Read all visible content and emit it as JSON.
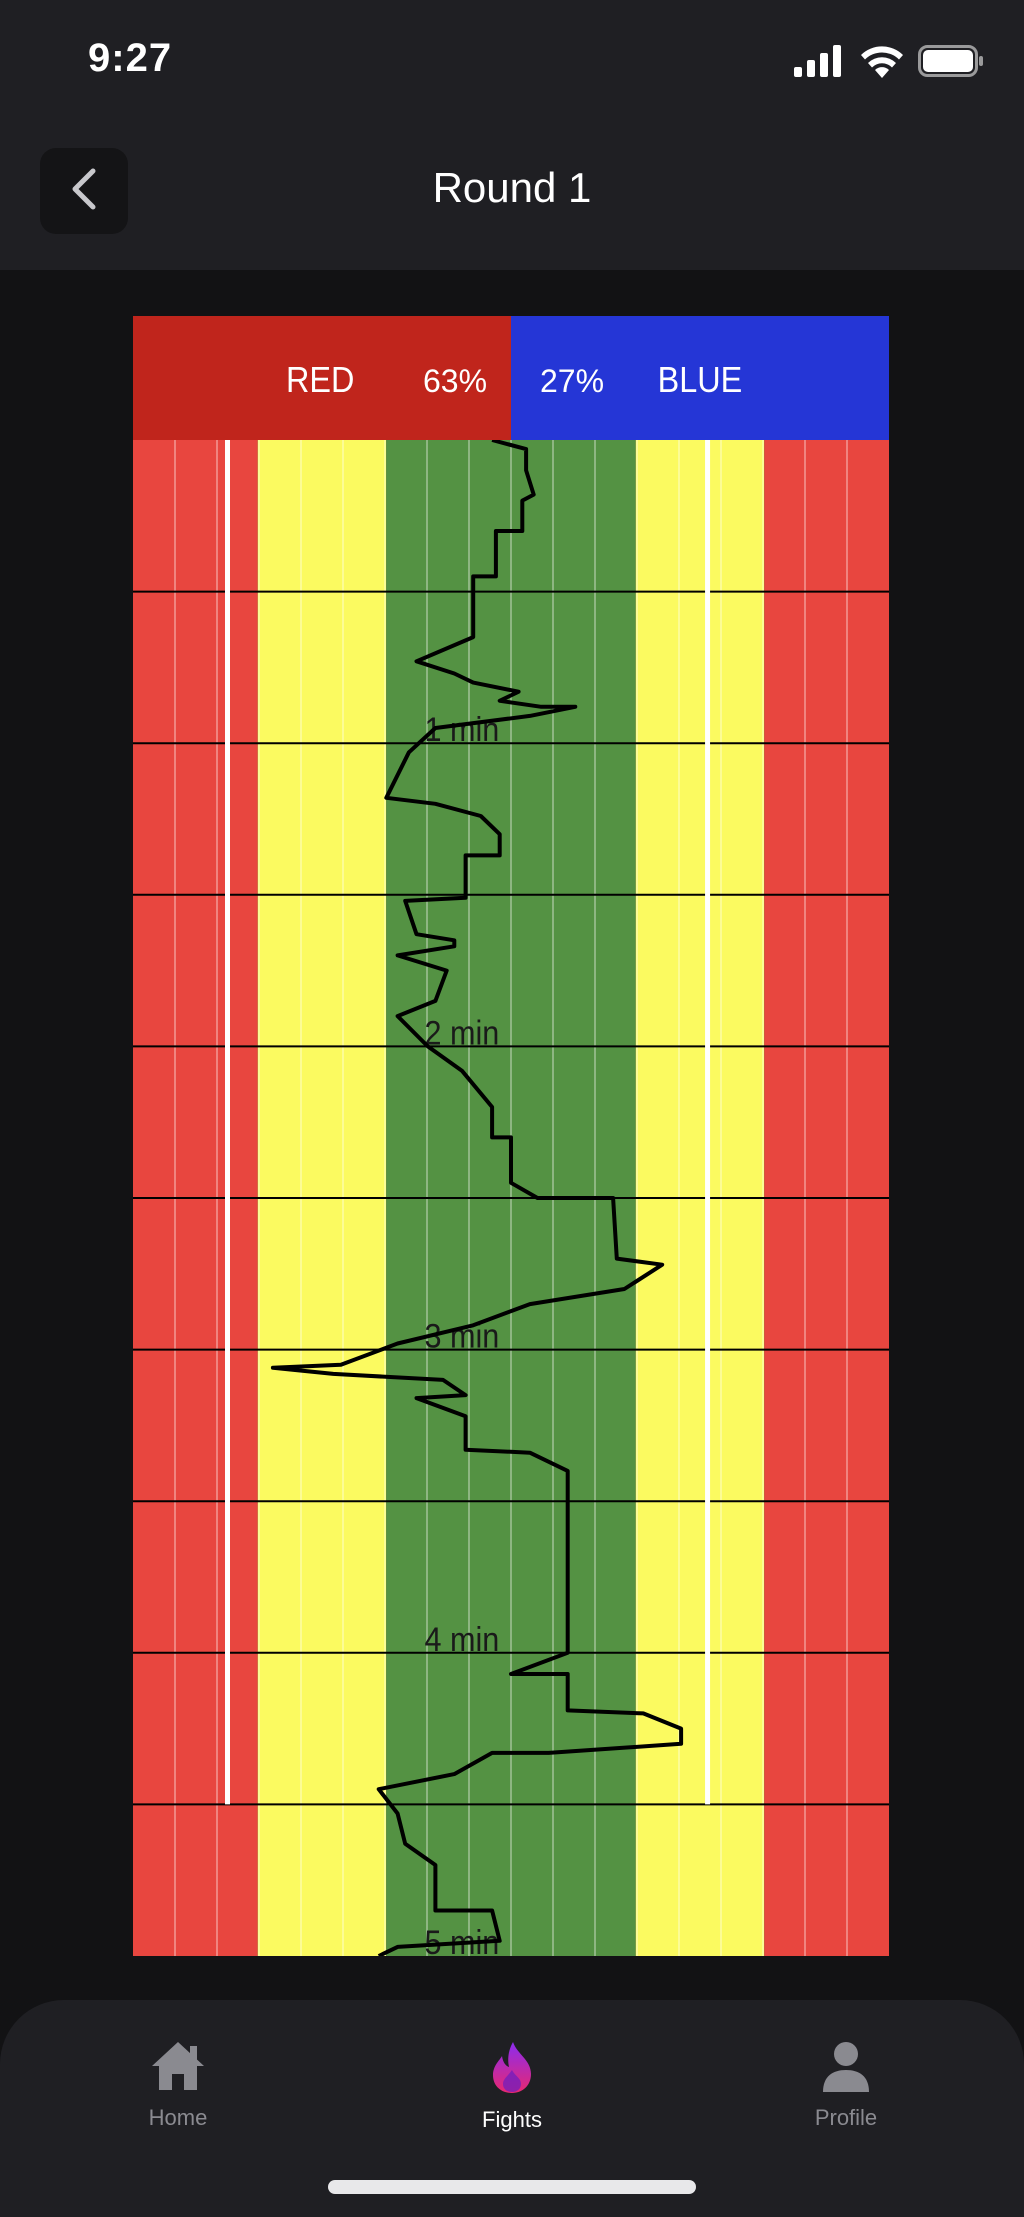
{
  "status_bar": {
    "time": "9:27"
  },
  "header": {
    "title": "Round 1"
  },
  "chart_data": {
    "type": "line",
    "orientation": "vertical-time",
    "legend": {
      "red_label": "RED",
      "red_percent": "63%",
      "blue_label": "BLUE",
      "blue_percent": "27%"
    },
    "time_labels": [
      "1 min",
      "2 min",
      "3 min",
      "4 min",
      "5 min"
    ],
    "time_range": [
      0,
      5
    ],
    "x_range": [
      -100,
      100
    ],
    "colors": {
      "red": "#c0251c",
      "blue": "#2536d6",
      "outer": "#e8463f",
      "mid": "#fbfa60",
      "inner": "#549243"
    },
    "series": [
      {
        "points": [
          [
            -5,
            0
          ],
          [
            4,
            0.03
          ],
          [
            4,
            0.1
          ],
          [
            6,
            0.18
          ],
          [
            3,
            0.2
          ],
          [
            3,
            0.3
          ],
          [
            -4,
            0.3
          ],
          [
            -4,
            0.45
          ],
          [
            -10,
            0.45
          ],
          [
            -10,
            0.65
          ],
          [
            -25,
            0.73
          ],
          [
            -15,
            0.77
          ],
          [
            -10,
            0.8
          ],
          [
            2,
            0.83
          ],
          [
            -3,
            0.86
          ],
          [
            8,
            0.88
          ],
          [
            17,
            0.88
          ],
          [
            5,
            0.91
          ],
          [
            -20,
            0.95
          ],
          [
            -27,
            1.03
          ],
          [
            -33,
            1.18
          ],
          [
            -20,
            1.2
          ],
          [
            -8,
            1.24
          ],
          [
            -3,
            1.3
          ],
          [
            -3,
            1.37
          ],
          [
            -12,
            1.37
          ],
          [
            -12,
            1.51
          ],
          [
            -28,
            1.52
          ],
          [
            -25,
            1.63
          ],
          [
            -15,
            1.65
          ],
          [
            -15,
            1.67
          ],
          [
            -30,
            1.7
          ],
          [
            -17,
            1.75
          ],
          [
            -20,
            1.85
          ],
          [
            -30,
            1.9
          ],
          [
            -22,
            2.0
          ],
          [
            -13,
            2.08
          ],
          [
            -5,
            2.2
          ],
          [
            -5,
            2.3
          ],
          [
            0,
            2.3
          ],
          [
            0,
            2.45
          ],
          [
            7,
            2.5
          ],
          [
            27,
            2.5
          ],
          [
            28,
            2.7
          ],
          [
            40,
            2.72
          ],
          [
            30,
            2.8
          ],
          [
            5,
            2.85
          ],
          [
            -10,
            2.92
          ],
          [
            -30,
            2.98
          ],
          [
            -45,
            3.05
          ],
          [
            -63,
            3.06
          ],
          [
            -47,
            3.08
          ],
          [
            -18,
            3.1
          ],
          [
            -12,
            3.15
          ],
          [
            -25,
            3.16
          ],
          [
            -12,
            3.22
          ],
          [
            -12,
            3.33
          ],
          [
            5,
            3.34
          ],
          [
            15,
            3.4
          ],
          [
            15,
            4.0
          ],
          [
            0,
            4.07
          ],
          [
            15,
            4.07
          ],
          [
            15,
            4.19
          ],
          [
            35,
            4.2
          ],
          [
            45,
            4.25
          ],
          [
            45,
            4.3
          ],
          [
            10,
            4.33
          ],
          [
            -5,
            4.33
          ],
          [
            -15,
            4.4
          ],
          [
            -35,
            4.45
          ],
          [
            -30,
            4.53
          ],
          [
            -28,
            4.63
          ],
          [
            -20,
            4.7
          ],
          [
            -20,
            4.85
          ],
          [
            -5,
            4.85
          ],
          [
            -3,
            4.95
          ],
          [
            -30,
            4.97
          ],
          [
            -35,
            5.0
          ]
        ]
      }
    ]
  },
  "tabbar": {
    "tabs": [
      {
        "label": "Home",
        "icon": "house-icon"
      },
      {
        "label": "Fights",
        "icon": "flame-icon"
      },
      {
        "label": "Profile",
        "icon": "person-icon"
      }
    ],
    "active": "Fights",
    "active_color": "#e82870"
  }
}
